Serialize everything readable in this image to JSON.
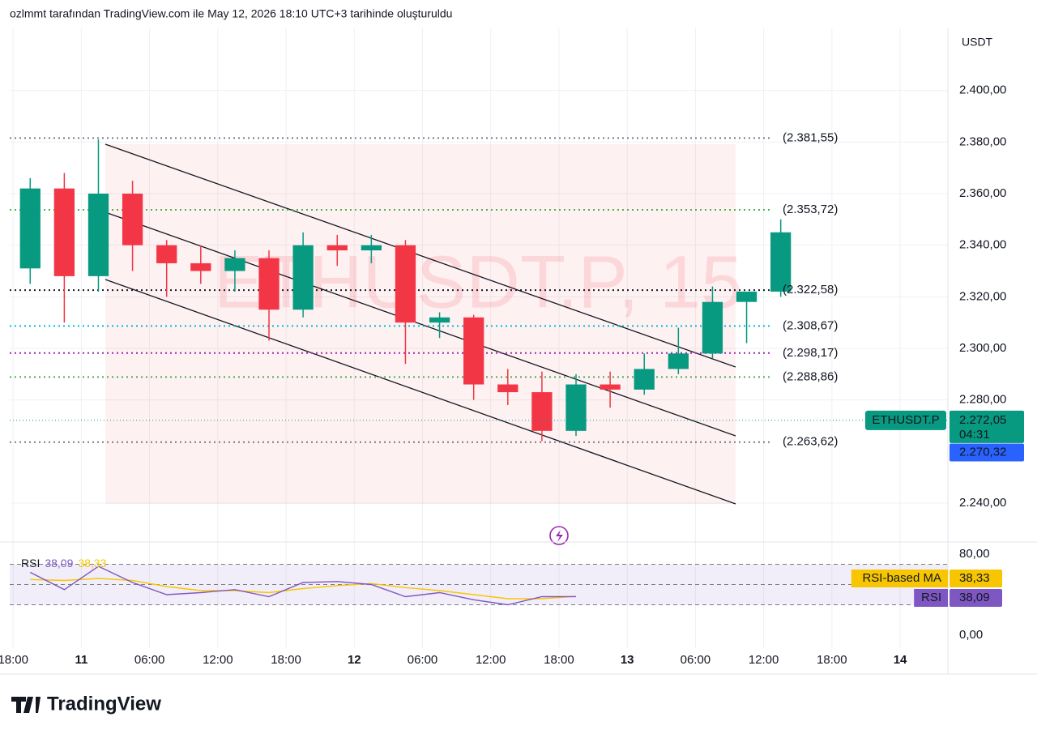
{
  "header": "ozlmmt tarafından TradingView.com ile May 12, 2026 18:10 UTC+3 tarihinde oluşturuldu",
  "footer": "TradingView",
  "chart_data": {
    "type": "candlestick",
    "watermark": "ETHUSDT.P, 15",
    "currency": "USDT",
    "x": [
      18,
      21,
      24,
      27,
      30,
      33,
      36,
      39,
      42,
      45,
      48,
      51,
      54,
      57,
      60,
      63,
      66,
      69,
      72,
      75,
      78,
      81,
      84
    ],
    "open": [
      2331,
      2362,
      2328,
      2360,
      2340,
      2333,
      2330,
      2335,
      2315,
      2340,
      2338,
      2340,
      2310,
      2312,
      2286,
      2283,
      2268,
      2286,
      2284,
      2292,
      2298,
      2318,
      2322
    ],
    "high": [
      2366,
      2368,
      2381,
      2365,
      2342,
      2340,
      2338,
      2338,
      2345,
      2344,
      2344,
      2342,
      2314,
      2313,
      2292,
      2291,
      2290,
      2291,
      2298,
      2308,
      2324,
      2322,
      2350
    ],
    "low": [
      2325,
      2310,
      2322,
      2330,
      2320,
      2325,
      2322,
      2303,
      2312,
      2332,
      2333,
      2294,
      2304,
      2280,
      2278,
      2264,
      2266,
      2277,
      2282,
      2290,
      2296,
      2302,
      2320
    ],
    "close": [
      2362,
      2328,
      2360,
      2340,
      2333,
      2330,
      2335,
      2315,
      2340,
      2338,
      2340,
      2310,
      2312,
      2286,
      2283,
      2268,
      2286,
      2284,
      2292,
      2298,
      2318,
      2322,
      2345
    ],
    "up_color": "#089981",
    "down_color": "#f23645",
    "xlim": [
      17.7,
      100.2
    ],
    "xticks": [
      {
        "value": 18,
        "label": "18:00"
      },
      {
        "value": 24,
        "label": "11"
      },
      {
        "value": 30,
        "label": "06:00"
      },
      {
        "value": 36,
        "label": "12:00"
      },
      {
        "value": 42,
        "label": "18:00"
      },
      {
        "value": 48,
        "label": "12"
      },
      {
        "value": 54,
        "label": "06:00"
      },
      {
        "value": 60,
        "label": "12:00"
      },
      {
        "value": 66,
        "label": "18:00"
      },
      {
        "value": 72,
        "label": "13"
      },
      {
        "value": 78,
        "label": "06:00"
      },
      {
        "value": 84,
        "label": "12:00"
      },
      {
        "value": 90,
        "label": "18:00"
      },
      {
        "value": 96,
        "label": "14"
      }
    ],
    "ylim": [
      2229.3,
      2424.1
    ],
    "yticks": [
      {
        "value": 2240,
        "label": "2.240,00"
      },
      {
        "value": 2280,
        "label": "2.280,00"
      },
      {
        "value": 2300,
        "label": "2.300,00"
      },
      {
        "value": 2320,
        "label": "2.320,00"
      },
      {
        "value": 2340,
        "label": "2.340,00"
      },
      {
        "value": 2360,
        "label": "2.360,00"
      },
      {
        "value": 2380,
        "label": "2.380,00"
      },
      {
        "value": 2400,
        "label": "2.400,00"
      }
    ],
    "grid": true,
    "levels": [
      {
        "value": 2381.55,
        "label": "(2.381,55)",
        "color": "#787b86"
      },
      {
        "value": 2353.72,
        "label": "(2.353,72)",
        "color": "#4caf50"
      },
      {
        "value": 2322.58,
        "label": "(2.322,58)",
        "color": "#131722"
      },
      {
        "value": 2308.67,
        "label": "(2.308,67)",
        "color": "#00bcd4"
      },
      {
        "value": 2298.17,
        "label": "(2.298,17)",
        "color": "#9c27b0"
      },
      {
        "value": 2288.86,
        "label": "(2.288,86)",
        "color": "#4caf50"
      },
      {
        "value": 2263.62,
        "label": "(2.263,62)",
        "color": "#787b86"
      }
    ],
    "last_price": {
      "name": "ETHUSDT.P",
      "value": 2272.05,
      "label": "2.272,05",
      "countdown": "04:31",
      "color": "#089981"
    },
    "mark_price": {
      "value": 2270.32,
      "label": "2.270,32",
      "color": "#2962ff"
    },
    "rsi": {
      "title": "RSI",
      "ylim": [
        -12.8,
        91.2
      ],
      "yticks": [
        {
          "value": 80,
          "label": "80,00"
        },
        {
          "value": 0,
          "label": "0,00"
        }
      ],
      "levels": [
        70,
        50,
        30
      ],
      "series": [
        {
          "name": "RSI",
          "color": "#7e57c2",
          "last_label": "38,09",
          "values": [
            62,
            45,
            68,
            52,
            40,
            42,
            45,
            38,
            52,
            53,
            50,
            38,
            42,
            35,
            30,
            38,
            38.09,
            null,
            null,
            null,
            null,
            null,
            null
          ]
        },
        {
          "name": "RSI-based MA",
          "color": "#f7c600",
          "last_label": "38,33",
          "values": [
            55,
            54,
            56,
            54,
            48,
            44,
            44,
            42,
            46,
            49,
            51,
            47,
            44,
            40,
            36,
            36,
            38.33,
            null,
            null,
            null,
            null,
            null,
            null
          ]
        }
      ]
    }
  }
}
